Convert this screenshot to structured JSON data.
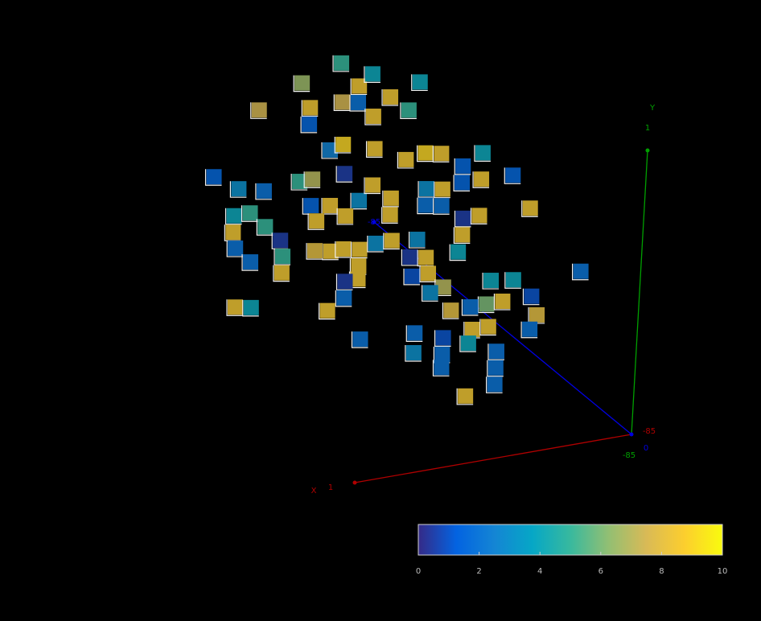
{
  "chart_data": {
    "type": "voxel3d",
    "x_label": "X",
    "y_label": "Y",
    "xlim": [
      -85,
      1
    ],
    "ylim": [
      -85,
      1
    ],
    "zlim": [
      0,
      -85
    ],
    "xticks": [
      -85,
      1
    ],
    "yticks": [
      -85,
      1
    ],
    "zticks": [
      0,
      -85
    ],
    "axis_colors": {
      "x": "#b00000",
      "y": "#00a000",
      "z": "#0000e0"
    },
    "colormap": [
      "#352a87",
      "#0363e1",
      "#1485d4",
      "#06a7c6",
      "#38b99e",
      "#92bf73",
      "#d9ba56",
      "#fcce2e",
      "#f9fb0e"
    ],
    "clim": [
      0,
      10
    ],
    "colorbar_ticks": [
      0,
      2,
      4,
      6,
      8,
      10
    ],
    "x": [
      -38,
      -44,
      -48,
      -26,
      -13,
      -29,
      -29,
      -39,
      -44,
      -54,
      -60,
      -63,
      -49,
      -36,
      -40,
      -50,
      0,
      -8,
      -16,
      -7,
      -12,
      -17,
      -7,
      -8,
      -13,
      -22,
      -23,
      -23,
      -27,
      -31,
      -41,
      -37,
      -46,
      -50,
      -56,
      -56,
      -60,
      -66,
      -71,
      -78,
      -84,
      -67,
      -72,
      -78,
      -84,
      -67,
      -72,
      -79,
      -84,
      -79,
      -78,
      -65,
      -38,
      -42,
      -47,
      -52,
      -57,
      -47,
      -47,
      -43,
      -43,
      -38,
      -9,
      -14,
      -63,
      -68,
      -64,
      -69,
      -74,
      -70,
      -31,
      -33,
      -42,
      -33,
      -60,
      -66,
      -55,
      -62,
      -54,
      -59,
      -49,
      -68,
      -70,
      -43,
      -50,
      -55,
      -32,
      -32,
      -41,
      -41,
      -41,
      -49,
      -58,
      -58,
      -58,
      -49,
      -68,
      -83,
      -15
    ],
    "y": [
      -3,
      -11,
      -8,
      -7,
      -13,
      -15,
      -20,
      -15,
      -16,
      -16,
      -21,
      -13,
      -21,
      -29,
      -28,
      -31,
      -31,
      -36,
      -38,
      -44,
      -44,
      -49,
      -49,
      -54,
      -59,
      -54,
      -59,
      -64,
      -37,
      -37,
      -37,
      -46,
      -46,
      -42,
      -47,
      -52,
      -36,
      -35,
      -36,
      -41,
      -38,
      -46,
      -47,
      -46,
      -46,
      -51,
      -52,
      -57,
      -57,
      -62,
      -67,
      -61,
      -60,
      -60,
      -61,
      -60,
      -60,
      -66,
      -70,
      -70,
      -75,
      -78,
      -72,
      -73,
      -66,
      -67,
      -72,
      -72,
      -77,
      -78,
      -45,
      -50,
      -50,
      -59,
      -15,
      -26,
      -46,
      -47,
      -53,
      -53,
      -53,
      -53,
      -59,
      -53,
      -60,
      -60,
      -58,
      -64,
      -61,
      -66,
      -70,
      -64,
      -68,
      -73,
      -78,
      -80,
      -63,
      -48,
      -57
    ],
    "z": [
      -51,
      -51,
      -51,
      -51,
      -51,
      -51,
      -51,
      -51,
      -51,
      -51,
      -51,
      -51,
      -51,
      -51,
      -51,
      -51,
      -51,
      -51,
      -51,
      -51,
      -51,
      -51,
      -51,
      -51,
      -51,
      -51,
      -51,
      -51,
      -51,
      -51,
      -51,
      -51,
      -51,
      -51,
      -51,
      -51,
      -51,
      -51,
      -51,
      -51,
      -51,
      -51,
      -51,
      -51,
      -51,
      -51,
      -51,
      -51,
      -51,
      -51,
      -51,
      -51,
      -51,
      -51,
      -51,
      -51,
      -51,
      -51,
      -51,
      -51,
      -51,
      -51,
      -51,
      -51,
      -51,
      -51,
      -51,
      -51,
      -51,
      -51,
      -51,
      -51,
      -51,
      -51,
      -17,
      -17,
      -17,
      -17,
      -17,
      -17,
      -17,
      -17,
      -17,
      -17,
      -17,
      -17,
      -17,
      -17,
      -17,
      -17,
      -17,
      -17,
      -17,
      -17,
      -17,
      -17,
      -17,
      -17,
      -17
    ],
    "values": [
      5,
      8.5,
      4,
      6.5,
      7.5,
      8.5,
      1.5,
      7.5,
      2,
      8.5,
      5,
      4,
      8.5,
      2.5,
      9,
      8.5,
      1.5,
      3,
      2,
      4,
      5,
      5,
      8.5,
      2,
      2,
      0.5,
      5,
      8.5,
      5,
      7,
      0.5,
      8.5,
      3,
      8.5,
      8.5,
      8.5,
      8.5,
      9,
      8.5,
      1.5,
      4,
      3,
      8.5,
      1.5,
      8.5,
      2,
      2,
      0.5,
      8.5,
      8.5,
      4,
      3,
      8.5,
      8.5,
      8.5,
      3,
      8.5,
      8.5,
      8.5,
      0.5,
      2,
      8.5,
      8.5,
      4,
      0.5,
      8.5,
      1,
      8.5,
      7,
      3,
      1.5,
      8.5,
      8.5,
      8,
      1.5,
      8.5,
      4,
      4,
      6,
      8.5,
      2,
      1,
      8,
      8,
      8.5,
      8.5,
      2,
      3,
      1,
      2,
      2,
      4,
      2,
      2,
      2,
      8.5,
      2,
      2,
      2
    ]
  }
}
